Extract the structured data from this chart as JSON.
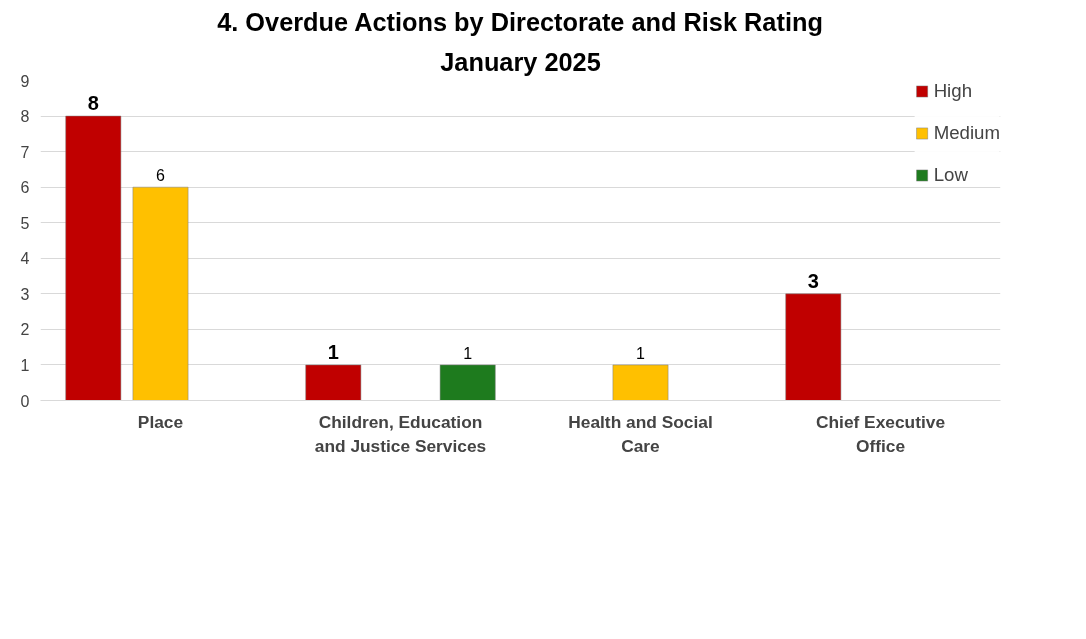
{
  "chart_data": {
    "type": "bar",
    "title": "4. Overdue Actions by Directorate and Risk Rating",
    "subtitle": "January 2025",
    "categories": [
      "Place",
      "Children, Education and Justice Services",
      "Health and Social Care",
      "Chief Executive Office"
    ],
    "series": [
      {
        "name": "High",
        "color": "#c00000",
        "values": [
          8,
          1,
          null,
          3
        ]
      },
      {
        "name": "Medium",
        "color": "#ffc000",
        "values": [
          6,
          null,
          1,
          null
        ]
      },
      {
        "name": "Low",
        "color": "#1e7b1e",
        "values": [
          null,
          1,
          null,
          null
        ]
      }
    ],
    "ylim": [
      0,
      9
    ],
    "yticks": [
      0,
      1,
      2,
      3,
      4,
      5,
      6,
      7,
      8,
      9
    ],
    "grid": "y",
    "legend": "top right",
    "data_labels": true
  }
}
